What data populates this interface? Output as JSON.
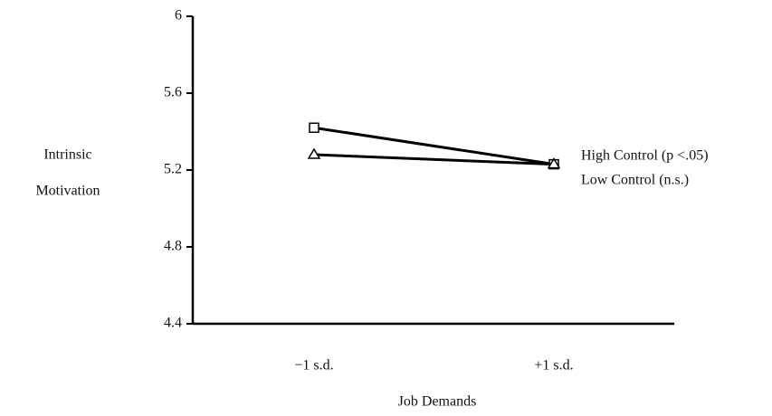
{
  "chart_data": {
    "type": "line",
    "ylabel": [
      "Intrinsic",
      "Motivation"
    ],
    "xlabel": "Job Demands",
    "categories": [
      "−1 s.d.",
      "+1 s.d."
    ],
    "series": [
      {
        "name": "High Control (p <.05)",
        "color": "#000000",
        "marker": "square",
        "values": [
          5.42,
          5.23
        ]
      },
      {
        "name": "Low Control (n.s.)",
        "color": "#000000",
        "marker": "triangle",
        "values": [
          5.28,
          5.23
        ]
      }
    ],
    "ylim": [
      4.4,
      6
    ],
    "yticks": [
      4.4,
      4.8,
      5.2,
      5.6,
      6
    ]
  }
}
